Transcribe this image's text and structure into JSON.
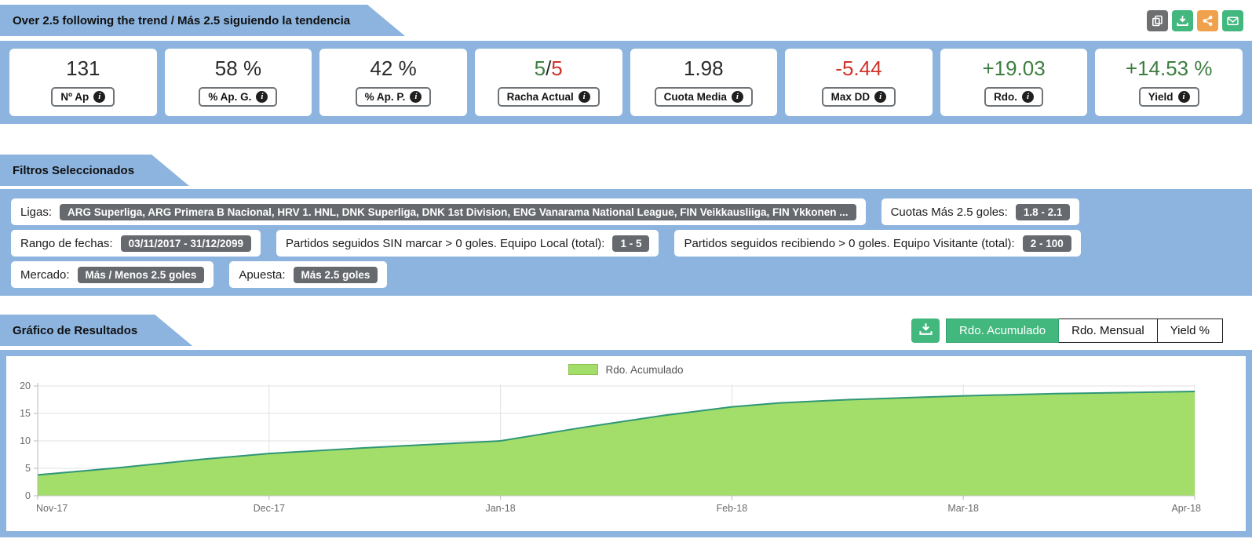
{
  "header": {
    "title": "Over 2.5 following the trend / Más 2.5 siguiendo la tendencia",
    "actions": [
      {
        "icon": "copy",
        "color": "#6e6f71"
      },
      {
        "icon": "download",
        "color": "#42b87e"
      },
      {
        "icon": "share",
        "color": "#f0a14c"
      },
      {
        "icon": "envelope",
        "color": "#42b87e"
      }
    ]
  },
  "stats": [
    {
      "value": "131",
      "color": "#2b2b2b",
      "label": "Nº Ap"
    },
    {
      "value": "58 %",
      "color": "#2b2b2b",
      "label": "% Ap. G."
    },
    {
      "value": "42 %",
      "color": "#2b2b2b",
      "label": "% Ap. P."
    },
    {
      "label": "Racha Actual",
      "parts": {
        "win": "5",
        "sep": "/",
        "lose": "5"
      },
      "win_color": "#3d7e40",
      "sep_color": "#2b2b2b",
      "lose_color": "#d0342c"
    },
    {
      "value": "1.98",
      "color": "#2b2b2b",
      "label": "Cuota Media"
    },
    {
      "value": "-5.44",
      "color": "#d0342c",
      "label": "Max DD"
    },
    {
      "value": "+19.03",
      "color": "#3d7e40",
      "label": "Rdo."
    },
    {
      "value": "+14.53 %",
      "color": "#3d7e40",
      "label": "Yield"
    }
  ],
  "filters": {
    "title": "Filtros Seleccionados",
    "rows": [
      [
        {
          "label": "Ligas:",
          "badge": "ARG Superliga, ARG Primera B Nacional, HRV 1. HNL, DNK Superliga, DNK 1st Division, ENG Vanarama National League, FIN Veikkausliiga, FIN Ykkonen ..."
        },
        {
          "label": "Cuotas Más 2.5 goles:",
          "badge": "1.8 - 2.1"
        }
      ],
      [
        {
          "label": "Rango de fechas:",
          "badge": "03/11/2017 - 31/12/2099"
        },
        {
          "label": "Partidos seguidos SIN marcar > 0 goles. Equipo Local (total):",
          "badge": "1 - 5"
        },
        {
          "label": "Partidos seguidos recibiendo > 0 goles. Equipo Visitante (total):",
          "badge": "2 - 100"
        }
      ],
      [
        {
          "label": "Mercado:",
          "badge": "Más / Menos 2.5 goles"
        },
        {
          "label": "Apuesta:",
          "badge": "Más 2.5 goles"
        }
      ]
    ]
  },
  "results": {
    "title": "Gráfico de Resultados",
    "tabs": [
      {
        "label": "Rdo. Acumulado",
        "active": true
      },
      {
        "label": "Rdo. Mensual",
        "active": false
      },
      {
        "label": "Yield %",
        "active": false
      }
    ]
  },
  "chart_data": {
    "type": "area",
    "legend": "Rdo. Acumulado",
    "legend_position": "top-center",
    "x_labels": [
      "Nov-17",
      "Dec-17",
      "Jan-18",
      "Feb-18",
      "Mar-18",
      "Apr-18"
    ],
    "x_unit": "months since Nov-17",
    "y_ticks": [
      0,
      5,
      10,
      15,
      20
    ],
    "ylim": [
      0,
      20
    ],
    "grid": true,
    "series": [
      {
        "name": "Rdo. Acumulado",
        "fill": "#a2de69",
        "stroke": "#2f9678",
        "monthly_values": [
          3.8,
          7.7,
          10.0,
          16.2,
          18.2,
          19.0
        ],
        "points": [
          [
            0,
            3.8
          ],
          [
            0.35,
            5.1
          ],
          [
            0.7,
            6.6
          ],
          [
            1,
            7.7
          ],
          [
            1.4,
            8.7
          ],
          [
            2,
            10.0
          ],
          [
            2.35,
            12.4
          ],
          [
            2.7,
            14.6
          ],
          [
            3,
            16.2
          ],
          [
            3.2,
            16.9
          ],
          [
            3.5,
            17.5
          ],
          [
            4,
            18.2
          ],
          [
            4.4,
            18.6
          ],
          [
            5,
            19.0
          ]
        ]
      }
    ]
  }
}
